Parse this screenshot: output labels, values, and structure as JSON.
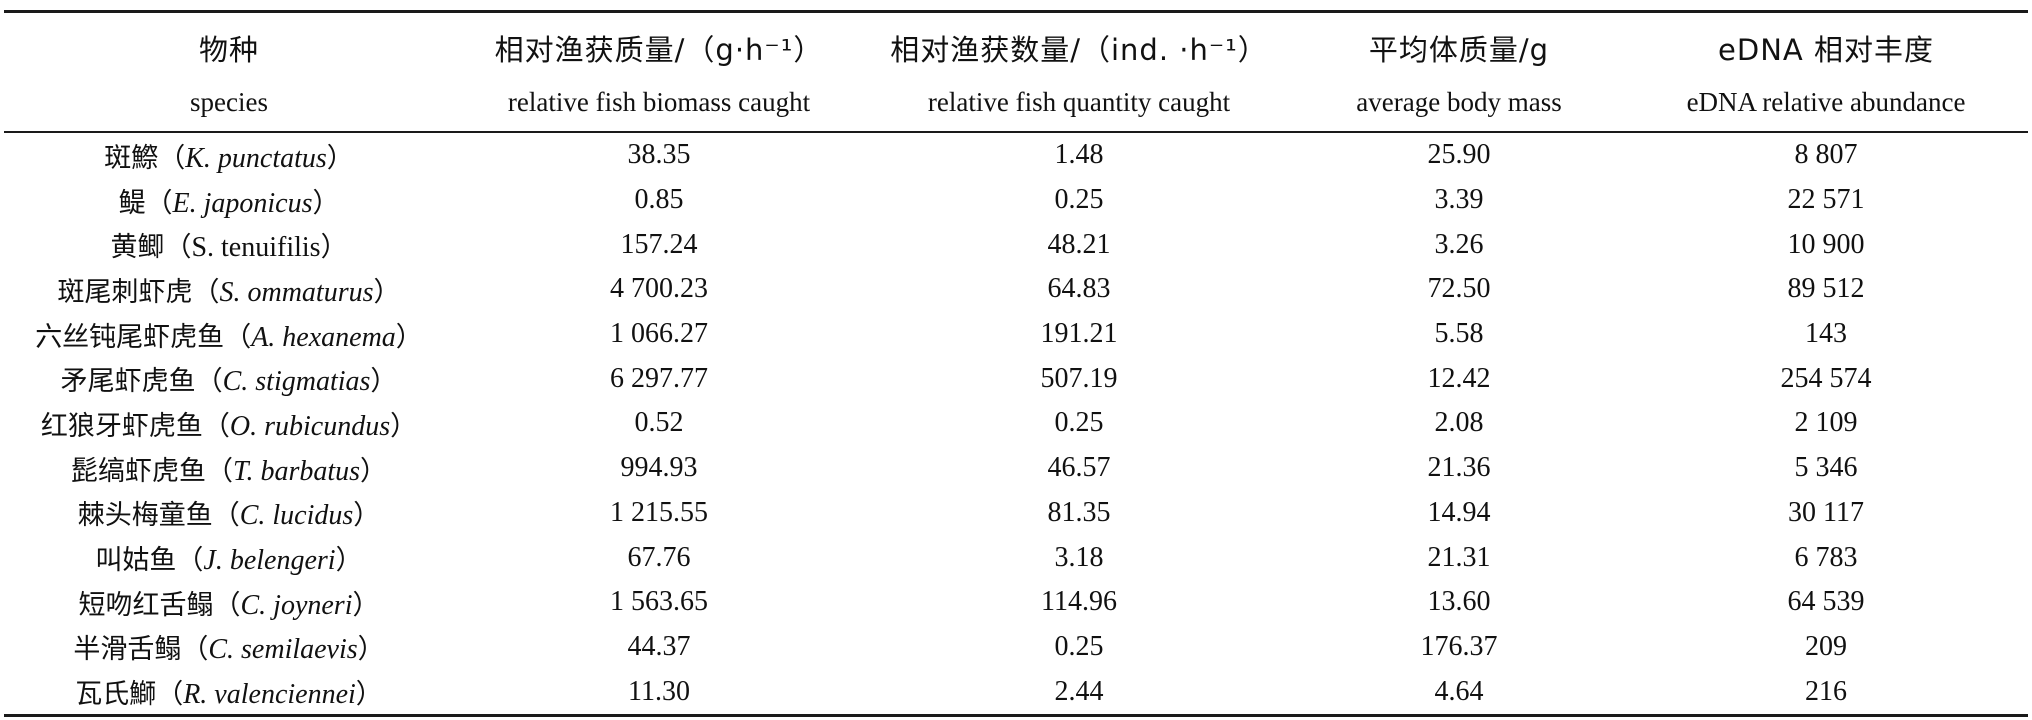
{
  "table": {
    "headers_zh": [
      "物种",
      "相对渔获质量/（g·h⁻¹）",
      "相对渔获数量/（ind. ·h⁻¹）",
      "平均体质量/g",
      "eDNA 相对丰度"
    ],
    "headers_en": [
      "species",
      "relative fish biomass caught",
      "relative fish quantity caught",
      "average body mass",
      "eDNA relative abundance"
    ],
    "rows": [
      {
        "zh": "斑鰶",
        "sci": "K. punctatus",
        "biomass": "38.35",
        "quantity": "1.48",
        "mass": "25.90",
        "edna": "8 807"
      },
      {
        "zh": "鳀",
        "sci": "E. japonicus",
        "biomass": "0.85",
        "quantity": "0.25",
        "mass": "3.39",
        "edna": "22 571"
      },
      {
        "zh": "黄鲫",
        "sci": "S. tenuifilis",
        "biomass": "157.24",
        "quantity": "48.21",
        "mass": "3.26",
        "edna": "10 900"
      },
      {
        "zh": "斑尾刺虾虎",
        "sci": "S. ommaturus",
        "biomass": "4 700.23",
        "quantity": "64.83",
        "mass": "72.50",
        "edna": "89 512"
      },
      {
        "zh": "六丝钝尾虾虎鱼",
        "sci": "A. hexanema",
        "biomass": "1 066.27",
        "quantity": "191.21",
        "mass": "5.58",
        "edna": "143"
      },
      {
        "zh": "矛尾虾虎鱼",
        "sci": "C. stigmatias",
        "biomass": "6 297.77",
        "quantity": "507.19",
        "mass": "12.42",
        "edna": "254 574"
      },
      {
        "zh": "红狼牙虾虎鱼",
        "sci": "O. rubicundus",
        "biomass": "0.52",
        "quantity": "0.25",
        "mass": "2.08",
        "edna": "2 109"
      },
      {
        "zh": "髭缟虾虎鱼",
        "sci": "T. barbatus",
        "biomass": "994.93",
        "quantity": "46.57",
        "mass": "21.36",
        "edna": "5 346"
      },
      {
        "zh": "棘头梅童鱼",
        "sci": "C. lucidus",
        "biomass": "1 215.55",
        "quantity": "81.35",
        "mass": "14.94",
        "edna": "30 117"
      },
      {
        "zh": "叫姑鱼",
        "sci": "J. belengeri",
        "biomass": "67.76",
        "quantity": "3.18",
        "mass": "21.31",
        "edna": "6 783"
      },
      {
        "zh": "短吻红舌鳎",
        "sci": "C. joyneri",
        "biomass": "1 563.65",
        "quantity": "114.96",
        "mass": "13.60",
        "edna": "64 539"
      },
      {
        "zh": "半滑舌鳎",
        "sci": "C. semilaevis",
        "biomass": "44.37",
        "quantity": "0.25",
        "mass": "176.37",
        "edna": "209"
      },
      {
        "zh": "瓦氏鰤",
        "sci": "R. valenciennei",
        "biomass": "11.30",
        "quantity": "2.44",
        "mass": "4.64",
        "edna": "216"
      }
    ]
  }
}
